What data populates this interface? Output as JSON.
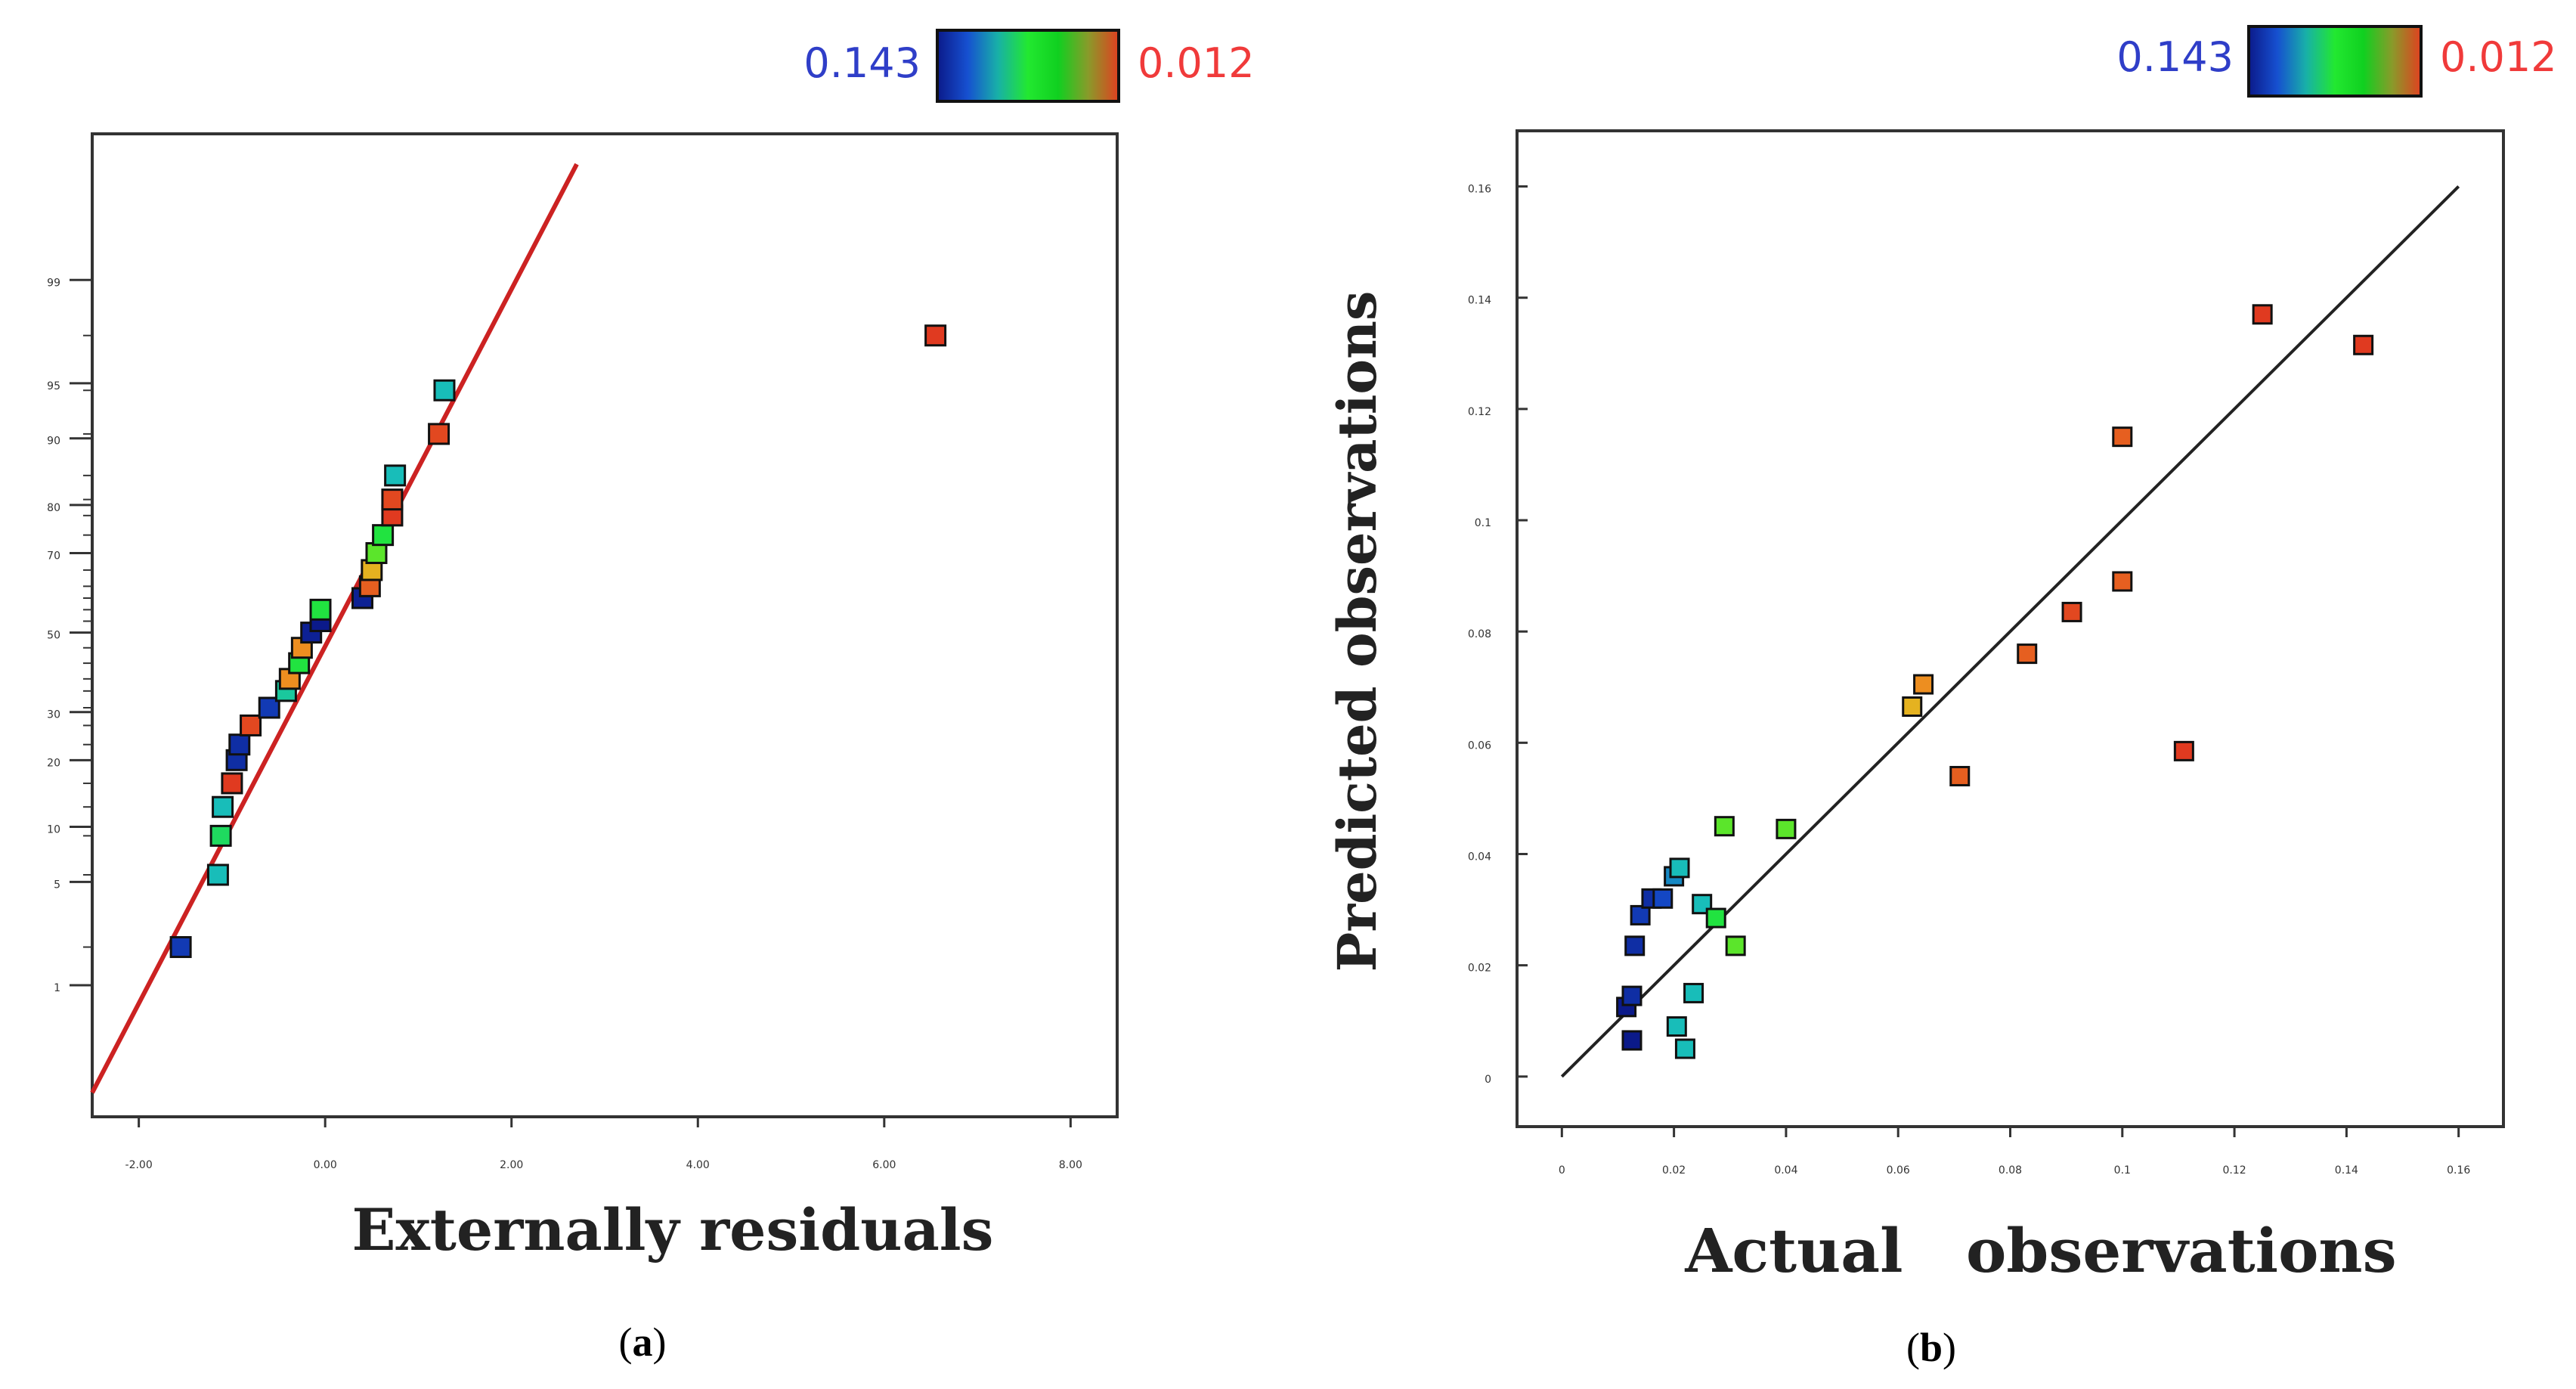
{
  "colorbar": {
    "min_label": "0.143",
    "max_label": "0.012",
    "min_color": "#2f3ec8",
    "max_color": "#f03a3a",
    "stops": [
      "#0b1a8a",
      "#1650d0",
      "#18b0a8",
      "#22e830",
      "#10d020",
      "#8a9a2a",
      "#e04020"
    ]
  },
  "panels": [
    {
      "panel_label_prefix": "(",
      "panel_label": "a",
      "panel_label_suffix": ")"
    },
    {
      "panel_label_prefix": "(",
      "panel_label": "b",
      "panel_label_suffix": ")"
    }
  ],
  "chart_data": [
    {
      "type": "scatter",
      "title": "",
      "xlabel": "Externally residuals",
      "ylabel": "",
      "xlim": [
        -2.5,
        8.5
      ],
      "x_ticks": [
        -2,
        0,
        2,
        4,
        6,
        8
      ],
      "x_tick_labels": [
        "-2.00",
        "0.00",
        "2.00",
        "4.00",
        "6.00",
        "8.00"
      ],
      "y_scale": "normal-probability (%)",
      "y_ticks": [
        1,
        5,
        10,
        20,
        30,
        50,
        70,
        80,
        90,
        95,
        99
      ],
      "y_tick_labels": [
        "1",
        "5",
        "10",
        "20",
        "30",
        "50",
        "70",
        "80",
        "90",
        "95",
        "99"
      ],
      "grid": false,
      "reference_line": {
        "from": [
          -2.5,
          0.12
        ],
        "to": [
          2.7,
          99.9
        ],
        "color": "#cc2222"
      },
      "points": [
        {
          "x": -1.55,
          "y": 1.9,
          "c": 0.13
        },
        {
          "x": -1.15,
          "y": 5.5,
          "c": 0.1
        },
        {
          "x": -1.12,
          "y": 9.0,
          "c": 0.085
        },
        {
          "x": -1.1,
          "y": 12.5,
          "c": 0.1
        },
        {
          "x": -1.0,
          "y": 16.0,
          "c": 0.01
        },
        {
          "x": -0.95,
          "y": 20.0,
          "c": 0.135
        },
        {
          "x": -0.92,
          "y": 23.0,
          "c": 0.135
        },
        {
          "x": -0.8,
          "y": 27.0,
          "c": 0.015
        },
        {
          "x": -0.6,
          "y": 31.0,
          "c": 0.13
        },
        {
          "x": -0.42,
          "y": 35.0,
          "c": 0.095
        },
        {
          "x": -0.38,
          "y": 38.0,
          "c": 0.03
        },
        {
          "x": -0.28,
          "y": 42.0,
          "c": 0.08
        },
        {
          "x": -0.25,
          "y": 46.0,
          "c": 0.03
        },
        {
          "x": -0.15,
          "y": 50.0,
          "c": 0.14
        },
        {
          "x": -0.05,
          "y": 53.0,
          "c": 0.145
        },
        {
          "x": -0.05,
          "y": 56.0,
          "c": 0.08
        },
        {
          "x": 0.4,
          "y": 59.0,
          "c": 0.14
        },
        {
          "x": 0.48,
          "y": 62.0,
          "c": 0.02
        },
        {
          "x": 0.5,
          "y": 66.0,
          "c": 0.04
        },
        {
          "x": 0.55,
          "y": 70.0,
          "c": 0.07
        },
        {
          "x": 0.62,
          "y": 74.0,
          "c": 0.08
        },
        {
          "x": 0.72,
          "y": 78.0,
          "c": 0.01
        },
        {
          "x": 0.72,
          "y": 81.0,
          "c": 0.015
        },
        {
          "x": 0.75,
          "y": 85.0,
          "c": 0.1
        },
        {
          "x": 1.22,
          "y": 90.5,
          "c": 0.015
        },
        {
          "x": 1.28,
          "y": 94.5,
          "c": 0.1
        },
        {
          "x": 6.55,
          "y": 97.5,
          "c": 0.005
        }
      ]
    },
    {
      "type": "scatter",
      "title": "",
      "xlabel": "Actual   observations",
      "ylabel": "Predicted observations",
      "xlim": [
        -0.008,
        0.168
      ],
      "ylim": [
        -0.009,
        0.17
      ],
      "x_ticks": [
        0,
        0.02,
        0.04,
        0.06,
        0.08,
        0.1,
        0.12,
        0.14,
        0.16
      ],
      "x_tick_labels": [
        "0",
        "0.02",
        "0.04",
        "0.06",
        "0.08",
        "0.1",
        "0.12",
        "0.14",
        "0.16"
      ],
      "y_ticks": [
        0,
        0.02,
        0.04,
        0.06,
        0.08,
        0.1,
        0.12,
        0.14,
        0.16
      ],
      "y_tick_labels": [
        "0",
        "0.02",
        "0.04",
        "0.06",
        "0.08",
        "0.1",
        "0.12",
        "0.14",
        "0.16"
      ],
      "grid": false,
      "reference_line": {
        "from": [
          0,
          0
        ],
        "to": [
          0.16,
          0.16
        ],
        "color": "#222222"
      },
      "points": [
        {
          "x": 0.0115,
          "y": 0.0125,
          "c": 0.15
        },
        {
          "x": 0.0125,
          "y": 0.0145,
          "c": 0.135
        },
        {
          "x": 0.0125,
          "y": 0.0065,
          "c": 0.15
        },
        {
          "x": 0.013,
          "y": 0.0235,
          "c": 0.135
        },
        {
          "x": 0.014,
          "y": 0.029,
          "c": 0.13
        },
        {
          "x": 0.016,
          "y": 0.032,
          "c": 0.135
        },
        {
          "x": 0.018,
          "y": 0.032,
          "c": 0.125
        },
        {
          "x": 0.02,
          "y": 0.036,
          "c": 0.11
        },
        {
          "x": 0.021,
          "y": 0.0375,
          "c": 0.1
        },
        {
          "x": 0.0205,
          "y": 0.009,
          "c": 0.1
        },
        {
          "x": 0.022,
          "y": 0.005,
          "c": 0.1
        },
        {
          "x": 0.0235,
          "y": 0.015,
          "c": 0.1
        },
        {
          "x": 0.025,
          "y": 0.031,
          "c": 0.1
        },
        {
          "x": 0.0275,
          "y": 0.0285,
          "c": 0.08
        },
        {
          "x": 0.029,
          "y": 0.045,
          "c": 0.07
        },
        {
          "x": 0.031,
          "y": 0.0235,
          "c": 0.07
        },
        {
          "x": 0.04,
          "y": 0.0445,
          "c": 0.07
        },
        {
          "x": 0.0625,
          "y": 0.0665,
          "c": 0.04
        },
        {
          "x": 0.0645,
          "y": 0.0705,
          "c": 0.03
        },
        {
          "x": 0.071,
          "y": 0.054,
          "c": 0.02
        },
        {
          "x": 0.083,
          "y": 0.076,
          "c": 0.02
        },
        {
          "x": 0.091,
          "y": 0.0835,
          "c": 0.015
        },
        {
          "x": 0.1,
          "y": 0.115,
          "c": 0.02
        },
        {
          "x": 0.1,
          "y": 0.089,
          "c": 0.02
        },
        {
          "x": 0.111,
          "y": 0.0585,
          "c": 0.005
        },
        {
          "x": 0.125,
          "y": 0.137,
          "c": 0.005
        },
        {
          "x": 0.143,
          "y": 0.1315,
          "c": 0.005
        }
      ]
    }
  ]
}
